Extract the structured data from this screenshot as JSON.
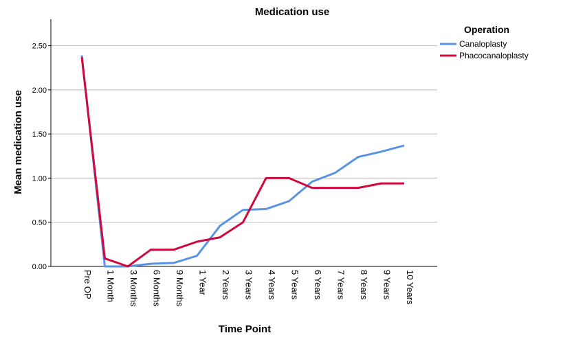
{
  "chart_data": {
    "type": "line",
    "title": "Medication use",
    "xlabel": "Time Point",
    "ylabel": "Mean medication use",
    "categories": [
      "Pre OP",
      "1 Month",
      "3 Months",
      "6 Months",
      "9 Months",
      "1 Year",
      "2 Years",
      "3 Years",
      "4 Years",
      "5 Years",
      "6 Years",
      "7 Years",
      "8 Years",
      "9 Years",
      "10 Years"
    ],
    "yticks": [
      "0.00",
      "0.50",
      "1.00",
      "1.50",
      "2.00",
      "2.50"
    ],
    "ylim": [
      0,
      2.8
    ],
    "grid": true,
    "legend": {
      "title": "Operation",
      "position": "top-right"
    },
    "series": [
      {
        "name": "Canaloplasty",
        "color": "#5b93e3",
        "values": [
          2.39,
          0.0,
          0.0,
          0.03,
          0.04,
          0.12,
          0.46,
          0.64,
          0.65,
          0.74,
          0.96,
          1.06,
          1.24,
          1.3,
          1.37
        ]
      },
      {
        "name": "Phacocanaloplasty",
        "color": "#d0093c",
        "values": [
          2.37,
          0.09,
          0.0,
          0.19,
          0.19,
          0.28,
          0.33,
          0.5,
          1.0,
          1.0,
          0.89,
          0.89,
          0.89,
          0.94,
          0.94
        ]
      }
    ]
  }
}
